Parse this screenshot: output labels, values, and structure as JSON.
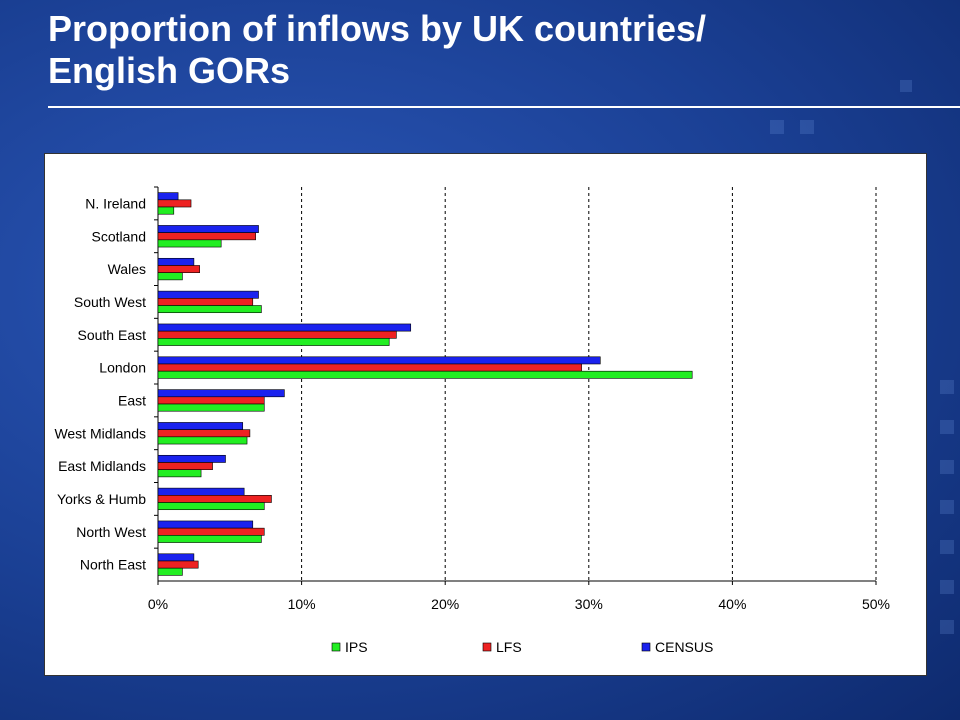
{
  "slide": {
    "title_line1": "Proportion of inflows by UK countries/",
    "title_line2": "English GORs"
  },
  "colors": {
    "IPS": "#22ee22",
    "LFS": "#ee2222",
    "CENSUS": "#1a22ee"
  },
  "chart_data": {
    "type": "bar",
    "orientation": "horizontal",
    "categories": [
      "N. Ireland",
      "Scotland",
      "Wales",
      "South West",
      "South East",
      "London",
      "East",
      "West Midlands",
      "East Midlands",
      "Yorks & Humb",
      "North West",
      "North East"
    ],
    "series": [
      {
        "name": "IPS",
        "values": [
          1.1,
          4.4,
          1.7,
          7.2,
          16.1,
          37.2,
          7.4,
          6.2,
          3.0,
          7.4,
          7.2,
          1.7
        ]
      },
      {
        "name": "LFS",
        "values": [
          2.3,
          6.8,
          2.9,
          6.6,
          16.6,
          29.5,
          7.4,
          6.4,
          3.8,
          7.9,
          7.4,
          2.8
        ]
      },
      {
        "name": "CENSUS",
        "values": [
          1.4,
          7.0,
          2.5,
          7.0,
          17.6,
          30.8,
          8.8,
          5.9,
          4.7,
          6.0,
          6.6,
          2.5
        ]
      }
    ],
    "xlim": [
      0,
      50
    ],
    "xticks": [
      "0%",
      "10%",
      "20%",
      "30%",
      "40%",
      "50%"
    ],
    "grid": "vertical dashed",
    "legend": [
      "IPS",
      "LFS",
      "CENSUS"
    ],
    "legend_position": "bottom"
  }
}
